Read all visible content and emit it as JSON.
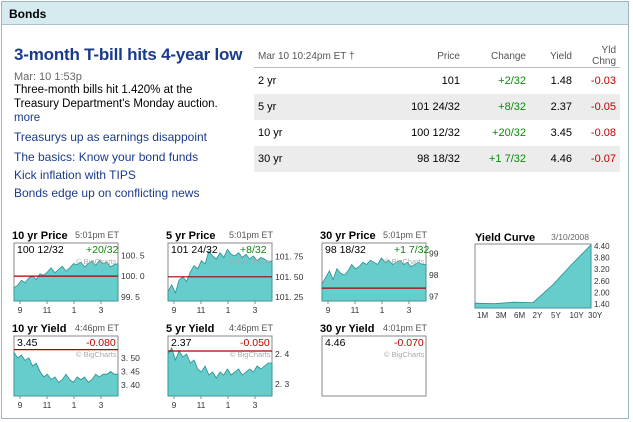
{
  "header": {
    "title": "Bonds"
  },
  "story": {
    "headline": "3-month T-bill hits 4-year low",
    "dateline": "Mar: 10 1:53p",
    "summary": "Three-month bills hit 1.420% at the Treasury Department's Monday auction.",
    "more": "more",
    "links": [
      "Treasurys up as earnings disappoint",
      "The basics: Know your bond funds",
      "Kick inflation with TIPS",
      "Bonds edge up on conflicting news"
    ]
  },
  "table": {
    "headers": [
      "Mar 10 10:24pm ET †",
      "Price",
      "Change",
      "Yield",
      "Yld Chng"
    ],
    "rows": [
      {
        "term": "2 yr",
        "price": "101",
        "change": "+2/32",
        "yield": "1.48",
        "yld_chng": "-0.03"
      },
      {
        "term": "5 yr",
        "price": "101 24/32",
        "change": "+8/32",
        "yield": "2.37",
        "yld_chng": "-0.05"
      },
      {
        "term": "10 yr",
        "price": "100 12/32",
        "change": "+20/32",
        "yield": "3.45",
        "yld_chng": "-0.08"
      },
      {
        "term": "30 yr",
        "price": "98 18/32",
        "change": "+1 7/32",
        "yield": "4.46",
        "yld_chng": "-0.07"
      }
    ]
  },
  "colors": {
    "area": "#66cccc",
    "ref_line": "#aa0000",
    "link": "#1a3a8c",
    "up": "#0a8a0a",
    "down": "#c00000"
  },
  "watermark": "© BigCharts",
  "x_ticks": [
    "9",
    "11",
    "1",
    "3"
  ],
  "chart_data": [
    {
      "type": "area",
      "title": "10 yr Price",
      "time": "5:01pm ET",
      "value": "100 12/32",
      "change": "+20/32",
      "change_dir": "up",
      "ylim": [
        99.4,
        100.8
      ],
      "yticks": [
        {
          "v": 100.5,
          "t": "100. 5"
        },
        {
          "v": 100.0,
          "t": "100. 0"
        },
        {
          "v": 99.5,
          "t": "99. 5"
        }
      ],
      "ref": 100.0,
      "values": [
        99.72,
        99.78,
        99.9,
        99.84,
        99.96,
        100.0,
        99.92,
        100.06,
        100.02,
        100.1,
        100.2,
        100.08,
        100.16,
        100.24,
        100.12,
        100.2,
        100.3,
        100.28,
        100.34,
        100.22,
        100.3,
        100.36,
        100.26,
        100.38,
        100.3,
        100.34,
        100.22,
        100.28,
        100.3
      ]
    },
    {
      "type": "area",
      "title": "5 yr Price",
      "time": "5:01pm ET",
      "value": "101 24/32",
      "change": "+8/32",
      "change_dir": "up",
      "ylim": [
        101.2,
        101.92
      ],
      "yticks": [
        {
          "v": 101.75,
          "t": "101. 75"
        },
        {
          "v": 101.5,
          "t": "101. 50"
        },
        {
          "v": 101.25,
          "t": "101. 25"
        }
      ],
      "ref": 101.5,
      "values": [
        101.32,
        101.4,
        101.3,
        101.46,
        101.5,
        101.44,
        101.56,
        101.64,
        101.6,
        101.7,
        101.66,
        101.82,
        101.76,
        101.72,
        101.8,
        101.74,
        101.84,
        101.78,
        101.76,
        101.8,
        101.74,
        101.78,
        101.72,
        101.76,
        101.7,
        101.74,
        101.72,
        101.68,
        101.7
      ]
    },
    {
      "type": "area",
      "title": "30 yr Price",
      "time": "5:01pm ET",
      "value": "98 18/32",
      "change": "+1 7/32",
      "change_dir": "up",
      "ylim": [
        96.8,
        99.5
      ],
      "yticks": [
        {
          "v": 99,
          "t": "99"
        },
        {
          "v": 98,
          "t": "98"
        },
        {
          "v": 97,
          "t": "97"
        }
      ],
      "ref": 97.4,
      "values": [
        97.6,
        97.9,
        98.2,
        97.8,
        98.3,
        98.1,
        98.0,
        98.2,
        98.5,
        98.3,
        98.4,
        98.6,
        98.5,
        98.7,
        98.6,
        98.5,
        98.8,
        98.6,
        98.7,
        98.5,
        98.6,
        98.7,
        98.5,
        98.6,
        98.4,
        98.5,
        98.6,
        98.5,
        98.5
      ]
    },
    {
      "type": "area",
      "title": "10 yr Yield",
      "time": "4:46pm ET",
      "value": "3.45",
      "change": "-0.080",
      "change_dir": "down",
      "ylim": [
        3.36,
        3.58
      ],
      "yticks": [
        {
          "v": 3.5,
          "t": "3. 50"
        },
        {
          "v": 3.45,
          "t": "3. 45"
        },
        {
          "v": 3.4,
          "t": "3. 40"
        }
      ],
      "ref": 3.53,
      "values": [
        3.52,
        3.5,
        3.51,
        3.49,
        3.5,
        3.47,
        3.48,
        3.45,
        3.43,
        3.44,
        3.42,
        3.43,
        3.41,
        3.42,
        3.44,
        3.42,
        3.41,
        3.43,
        3.42,
        3.43,
        3.41,
        3.42,
        3.44,
        3.43,
        3.44,
        3.44,
        3.45,
        3.44,
        3.44
      ]
    },
    {
      "type": "area",
      "title": "5 yr Yield",
      "time": "4:46pm ET",
      "value": "2.37",
      "change": "-0.050",
      "change_dir": "down",
      "ylim": [
        2.26,
        2.46
      ],
      "yticks": [
        {
          "v": 2.4,
          "t": "2. 4"
        },
        {
          "v": 2.3,
          "t": "2. 3"
        }
      ],
      "ref": 2.41,
      "values": [
        2.4,
        2.42,
        2.38,
        2.41,
        2.39,
        2.4,
        2.37,
        2.38,
        2.35,
        2.34,
        2.36,
        2.33,
        2.34,
        2.32,
        2.34,
        2.33,
        2.35,
        2.33,
        2.34,
        2.35,
        2.33,
        2.34,
        2.35,
        2.34,
        2.36,
        2.35,
        2.36,
        2.37,
        2.37
      ]
    },
    {
      "type": "area",
      "title": "30 yr Yield",
      "time": "4:01pm ET",
      "value": "4.46",
      "change": "-0.070",
      "change_dir": "down",
      "values": []
    }
  ],
  "yield_curve": {
    "type": "area",
    "title": "Yield Curve",
    "date": "3/10/2008",
    "categories": [
      "1M",
      "3M",
      "6M",
      "2Y",
      "5Y",
      "10Y",
      "30Y"
    ],
    "values": [
      1.45,
      1.42,
      1.5,
      1.48,
      2.37,
      3.45,
      4.46
    ],
    "ylim": [
      1.2,
      4.5
    ],
    "yticks": [
      {
        "v": 4.4,
        "t": "4.40"
      },
      {
        "v": 3.8,
        "t": "3.80"
      },
      {
        "v": 3.2,
        "t": "3.20"
      },
      {
        "v": 2.6,
        "t": "2.60"
      },
      {
        "v": 2.0,
        "t": "2.00"
      },
      {
        "v": 1.4,
        "t": "1.40"
      }
    ]
  }
}
